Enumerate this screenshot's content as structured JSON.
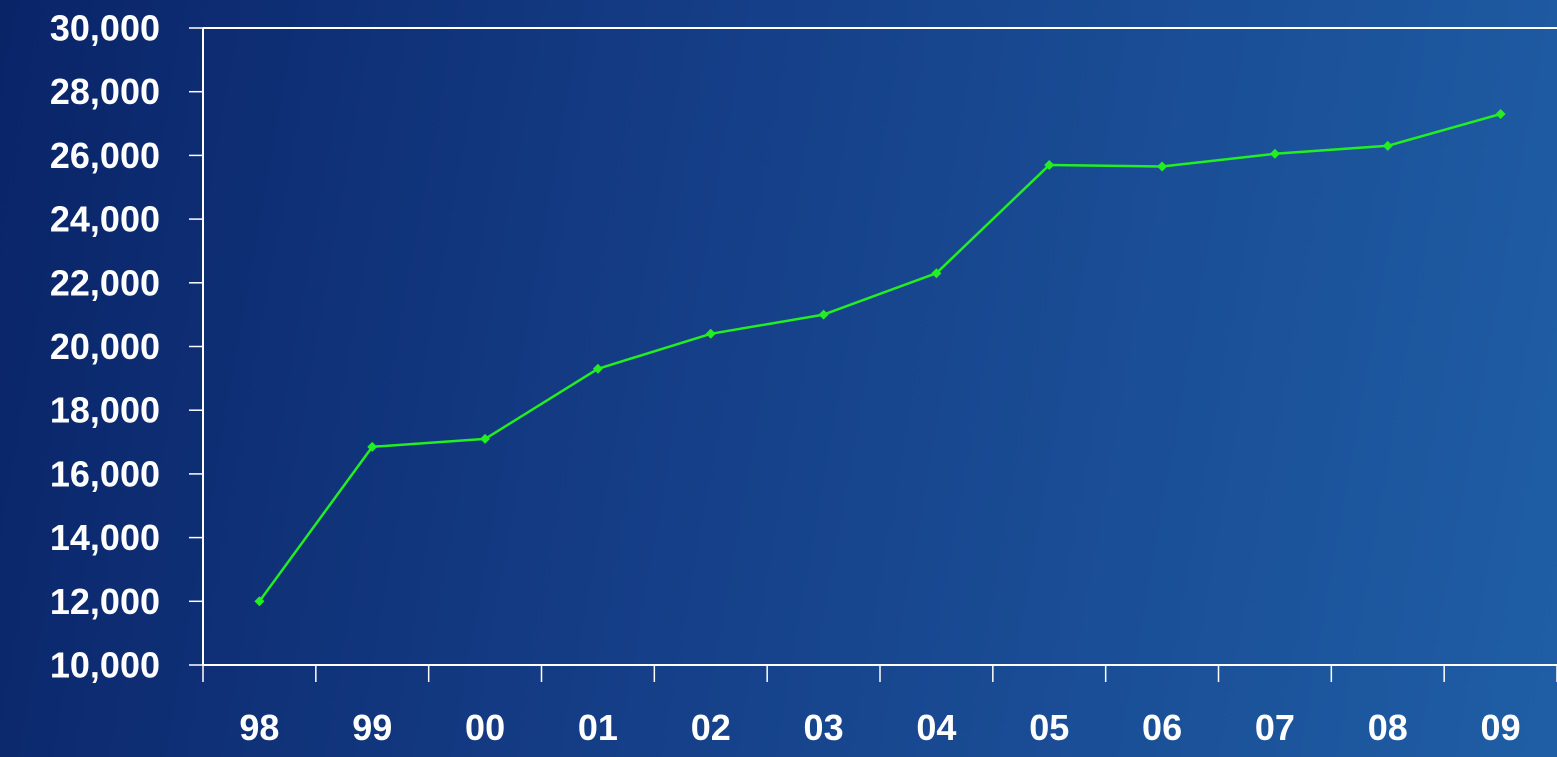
{
  "chart_data": {
    "type": "line",
    "title": "",
    "xlabel": "",
    "ylabel": "",
    "categories": [
      "98",
      "99",
      "00",
      "01",
      "02",
      "03",
      "04",
      "05",
      "06",
      "07",
      "08",
      "09"
    ],
    "series": [
      {
        "values": [
          12000,
          16850,
          17100,
          19300,
          20400,
          21000,
          22300,
          25700,
          25650,
          26050,
          26300,
          27300
        ]
      }
    ],
    "yticks": [
      "10,000",
      "12,000",
      "14,000",
      "16,000",
      "18,000",
      "20,000",
      "22,000",
      "24,000",
      "26,000",
      "28,000",
      "30,000"
    ],
    "ylim": [
      10000,
      30000
    ],
    "grid": false,
    "legend": "none",
    "colors": {
      "line": "#22ee22",
      "axis": "#ffffff",
      "text": "#ffffff"
    }
  }
}
